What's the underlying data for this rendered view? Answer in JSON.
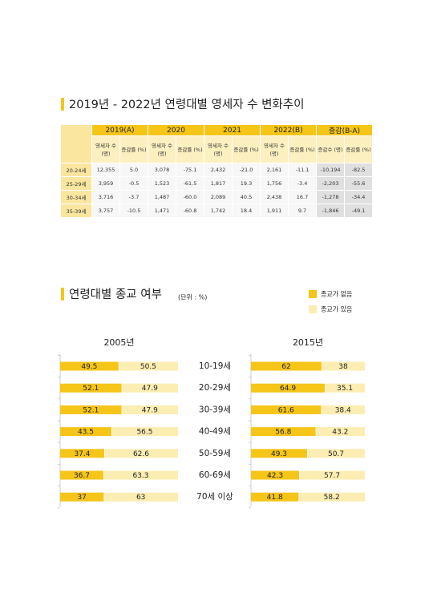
{
  "table": {
    "title": "2019년 - 2022년 연령대별 영세자 수 변화추이",
    "year_headers": [
      "2019(A)",
      "2020",
      "2021",
      "2022(B)",
      "증감(B-A)"
    ],
    "sub_headers": [
      "영세자 수(명)",
      "증감률 (%)",
      "영세자 수(명)",
      "증감률 (%)",
      "영세자 수(명)",
      "증감률 (%)",
      "영세자 수(명)",
      "증감률 (%)",
      "증감수 (명)",
      "증감률 (%)"
    ],
    "rows": [
      [
        "20-24세",
        "12,355",
        "5.0",
        "3,078",
        "-75.1",
        "2,432",
        "-21.0",
        "2,161",
        "-11.1",
        "-10,194",
        "-82.5"
      ],
      [
        "25-29세",
        "3,959",
        "-0.5",
        "1,523",
        "-61.5",
        "1,817",
        "19.3",
        "1,756",
        "-3.4",
        "-2,203",
        "-55.6"
      ],
      [
        "30-34세",
        "3,716",
        "-3.7",
        "1,487",
        "-60.0",
        "2,089",
        "40.5",
        "2,438",
        "16.7",
        "-1,278",
        "-34.4"
      ],
      [
        "35-39세",
        "3,757",
        "-10.5",
        "1,471",
        "-60.8",
        "1,742",
        "18.4",
        "1,911",
        "9.7",
        "-1,846",
        "-49.1"
      ]
    ]
  },
  "chart_data": {
    "type": "bar",
    "title": "연령대별 종교 여부",
    "subtitle": "(단위 : %)",
    "stacked": true,
    "horizontal": true,
    "xlim": [
      0,
      100
    ],
    "categories": [
      "10-19세",
      "20-29세",
      "30-39세",
      "40-49세",
      "50-59세",
      "60-69세",
      "70세 이상"
    ],
    "legend": [
      {
        "name": "종교가 없음",
        "color": "#f5c518"
      },
      {
        "name": "종교가 있음",
        "color": "#fcedb2"
      }
    ],
    "panels": [
      {
        "title": "2005년",
        "series": [
          {
            "values": [
              49.5,
              52.1,
              52.1,
              43.5,
              37.4,
              36.7,
              37
            ]
          },
          {
            "values": [
              50.5,
              47.9,
              47.9,
              56.5,
              62.6,
              63.3,
              63
            ]
          }
        ]
      },
      {
        "title": "2015년",
        "series": [
          {
            "values": [
              62,
              64.9,
              61.6,
              56.8,
              49.3,
              42.3,
              41.8
            ]
          },
          {
            "values": [
              38,
              35.1,
              38.4,
              43.2,
              50.7,
              57.7,
              58.2
            ]
          }
        ]
      }
    ]
  }
}
